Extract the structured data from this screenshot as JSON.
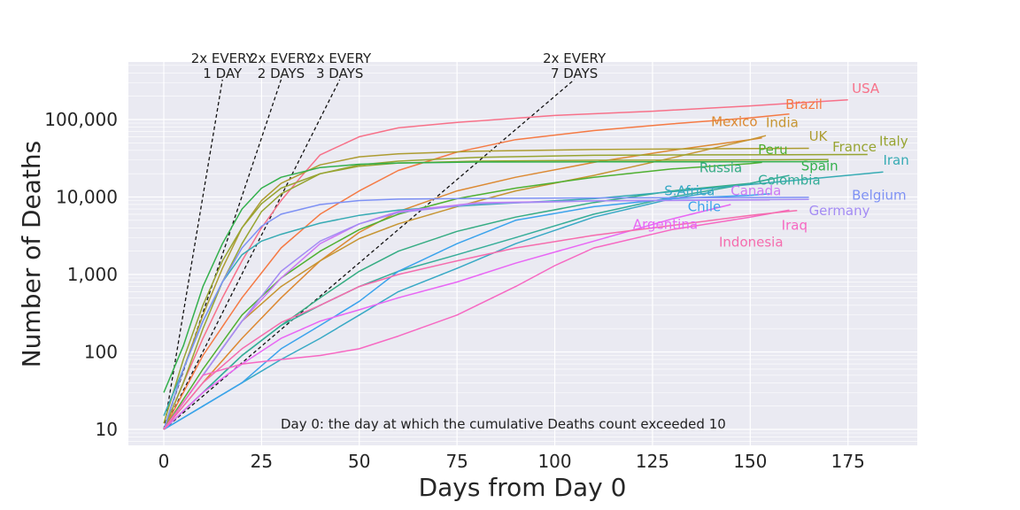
{
  "chart_data": {
    "type": "line",
    "xlabel": "Days from Day 0",
    "ylabel": "Number of Deaths",
    "xlim": [
      -8,
      193
    ],
    "ylim": [
      6.2,
      430000
    ],
    "yscale": "log",
    "grid": true,
    "x_ticks": [
      0,
      25,
      50,
      75,
      100,
      125,
      150,
      175
    ],
    "x_tick_labels": [
      "0",
      "25",
      "50",
      "75",
      "100",
      "125",
      "150",
      "175"
    ],
    "y_ticks": [
      10,
      100,
      1000,
      10000,
      100000
    ],
    "y_tick_labels": [
      "10",
      "100",
      "1,000",
      "10,000",
      "100,000"
    ],
    "annotation": "Day 0: the day at which the cumulative Deaths count exceeded 10",
    "doubling_guides": [
      {
        "label_line1": "2x EVERY",
        "label_line2": "1 DAY",
        "doubling_days": 1,
        "end_x": 15
      },
      {
        "label_line1": "2x EVERY",
        "label_line2": "2 DAYS",
        "doubling_days": 2,
        "end_x": 30
      },
      {
        "label_line1": "2x EVERY",
        "label_line2": "3 DAYS",
        "doubling_days": 3,
        "end_x": 45
      },
      {
        "label_line1": "2x EVERY",
        "label_line2": "7 DAYS",
        "doubling_days": 7,
        "end_x": 105
      }
    ],
    "series": [
      {
        "name": "USA",
        "color": "#f77189",
        "x": [
          0,
          5,
          10,
          15,
          20,
          25,
          30,
          35,
          40,
          50,
          60,
          75,
          100,
          125,
          150,
          175
        ],
        "y": [
          10,
          40,
          150,
          500,
          1500,
          4000,
          9000,
          18000,
          35000,
          60000,
          78000,
          92000,
          113000,
          128000,
          150000,
          180000
        ],
        "label_x": 176,
        "label_y": 220000
      },
      {
        "name": "Brazil",
        "color": "#f57a44",
        "x": [
          0,
          10,
          20,
          30,
          40,
          50,
          60,
          75,
          90,
          110,
          130,
          150,
          160
        ],
        "y": [
          10,
          90,
          500,
          2200,
          6000,
          12000,
          22000,
          38000,
          55000,
          72000,
          88000,
          105000,
          118000
        ],
        "label_x": 159,
        "label_y": 138000
      },
      {
        "name": "Mexico",
        "color": "#dc8932",
        "x": [
          0,
          10,
          20,
          30,
          40,
          50,
          60,
          75,
          90,
          110,
          130,
          150,
          153
        ],
        "y": [
          10,
          40,
          150,
          500,
          1500,
          3500,
          6500,
          12000,
          18000,
          28000,
          40000,
          55000,
          58000
        ],
        "label_x": 140,
        "label_y": 82000
      },
      {
        "name": "India",
        "color": "#c69532",
        "x": [
          0,
          10,
          20,
          30,
          40,
          50,
          60,
          75,
          90,
          110,
          130,
          150,
          154
        ],
        "y": [
          10,
          50,
          250,
          700,
          1500,
          2900,
          4500,
          7500,
          12000,
          19000,
          32000,
          55000,
          62000
        ],
        "label_x": 154,
        "label_y": 80000
      },
      {
        "name": "UK",
        "color": "#ad9c31",
        "x": [
          0,
          5,
          10,
          15,
          20,
          25,
          30,
          40,
          50,
          60,
          80,
          110,
          140,
          165
        ],
        "y": [
          10,
          60,
          300,
          1200,
          4000,
          9000,
          15000,
          26000,
          33000,
          36000,
          39000,
          41000,
          42000,
          42500
        ],
        "label_x": 165,
        "label_y": 53000
      },
      {
        "name": "France",
        "color": "#97a431",
        "x": [
          0,
          5,
          10,
          15,
          20,
          25,
          30,
          40,
          50,
          60,
          80,
          110,
          140,
          170
        ],
        "y": [
          10,
          40,
          200,
          800,
          2500,
          6500,
          11000,
          20000,
          25000,
          27500,
          29000,
          29800,
          30000,
          30500
        ],
        "label_x": 171,
        "label_y": 39000
      },
      {
        "name": "Italy",
        "color": "#97a431",
        "x": [
          0,
          5,
          10,
          15,
          20,
          25,
          30,
          40,
          50,
          60,
          80,
          110,
          140,
          180
        ],
        "y": [
          12,
          80,
          400,
          1500,
          4000,
          8200,
          13000,
          20000,
          26000,
          29000,
          32500,
          34500,
          35000,
          35400
        ],
        "label_x": 183,
        "label_y": 46000
      },
      {
        "name": "Peru",
        "color": "#4fb031",
        "x": [
          0,
          10,
          20,
          30,
          40,
          50,
          60,
          75,
          90,
          110,
          130,
          150,
          153
        ],
        "y": [
          10,
          60,
          300,
          900,
          2000,
          3800,
          6000,
          9500,
          13000,
          18000,
          23000,
          27000,
          28000
        ],
        "label_x": 152,
        "label_y": 36000
      },
      {
        "name": "Spain",
        "color": "#33b04c",
        "x": [
          0,
          5,
          10,
          15,
          20,
          25,
          30,
          40,
          50,
          60,
          80,
          110,
          140,
          170
        ],
        "y": [
          30,
          120,
          700,
          2500,
          7000,
          13000,
          18000,
          24000,
          26500,
          27500,
          28300,
          28400,
          28500,
          28600
        ],
        "label_x": 163,
        "label_y": 22000
      },
      {
        "name": "Russia",
        "color": "#35ac83",
        "x": [
          0,
          10,
          20,
          30,
          40,
          50,
          60,
          75,
          90,
          110,
          130,
          150,
          155
        ],
        "y": [
          10,
          30,
          90,
          220,
          500,
          1100,
          2000,
          3600,
          5500,
          8500,
          12000,
          15000,
          17000
        ],
        "label_x": 137,
        "label_y": 21000
      },
      {
        "name": "Colombia",
        "color": "#36ad99",
        "x": [
          0,
          10,
          20,
          30,
          40,
          50,
          60,
          75,
          90,
          110,
          130,
          150,
          160
        ],
        "y": [
          10,
          30,
          90,
          220,
          400,
          700,
          1100,
          1800,
          3000,
          6000,
          10000,
          15000,
          19000
        ],
        "label_x": 152,
        "label_y": 14500
      },
      {
        "name": "Iran",
        "color": "#37abb4",
        "x": [
          0,
          5,
          10,
          15,
          20,
          25,
          30,
          40,
          50,
          60,
          80,
          110,
          140,
          184
        ],
        "y": [
          15,
          60,
          250,
          800,
          1800,
          2700,
          3300,
          4600,
          5800,
          6800,
          7900,
          9500,
          13000,
          21000
        ],
        "label_x": 184,
        "label_y": 26000
      },
      {
        "name": "S.Africa",
        "color": "#38a9c5",
        "x": [
          0,
          10,
          20,
          30,
          40,
          50,
          60,
          75,
          90,
          110,
          130,
          140
        ],
        "y": [
          10,
          20,
          40,
          80,
          150,
          300,
          600,
          1200,
          2500,
          5500,
          9500,
          11500
        ],
        "label_x": 128,
        "label_y": 10500
      },
      {
        "name": "Chile",
        "color": "#3ba3ec",
        "x": [
          0,
          10,
          20,
          30,
          40,
          50,
          60,
          75,
          90,
          110,
          130,
          150,
          155
        ],
        "y": [
          10,
          20,
          40,
          110,
          220,
          450,
          1100,
          2500,
          5000,
          7500,
          9500,
          10500,
          11000
        ],
        "label_x": 134,
        "label_y": 6600
      },
      {
        "name": "Canada",
        "color": "#cc7af4",
        "x": [
          0,
          10,
          20,
          30,
          40,
          50,
          60,
          80,
          110,
          140,
          155
        ],
        "y": [
          10,
          50,
          250,
          900,
          2500,
          4500,
          6500,
          8400,
          8900,
          9100,
          9200
        ],
        "label_x": 145,
        "label_y": 10500
      },
      {
        "name": "Belgium",
        "color": "#7e91f4",
        "x": [
          0,
          5,
          10,
          15,
          20,
          25,
          30,
          40,
          50,
          60,
          80,
          110,
          140,
          165
        ],
        "y": [
          10,
          60,
          250,
          800,
          2200,
          4200,
          6000,
          8000,
          9000,
          9400,
          9600,
          9750,
          9850,
          9900
        ],
        "label_x": 176,
        "label_y": 9200
      },
      {
        "name": "Germany",
        "color": "#a48cf4",
        "x": [
          0,
          10,
          20,
          30,
          40,
          50,
          60,
          80,
          110,
          140,
          165
        ],
        "y": [
          10,
          50,
          250,
          1100,
          2700,
          4500,
          6300,
          8200,
          8900,
          9200,
          9300
        ],
        "label_x": 165,
        "label_y": 5800
      },
      {
        "name": "Argentina",
        "color": "#e866f4",
        "x": [
          0,
          10,
          20,
          30,
          40,
          50,
          60,
          75,
          90,
          110,
          130,
          145
        ],
        "y": [
          10,
          30,
          70,
          150,
          250,
          350,
          500,
          800,
          1400,
          2700,
          5200,
          8000
        ],
        "label_x": 120,
        "label_y": 3900
      },
      {
        "name": "Iraq",
        "color": "#f668c2",
        "x": [
          0,
          10,
          20,
          30,
          40,
          50,
          60,
          75,
          90,
          100,
          110,
          130,
          150,
          160
        ],
        "y": [
          10,
          50,
          70,
          80,
          90,
          110,
          160,
          300,
          700,
          1300,
          2200,
          3800,
          5500,
          6800
        ],
        "label_x": 158,
        "label_y": 3800
      },
      {
        "name": "Indonesia",
        "color": "#f56cad",
        "x": [
          0,
          10,
          20,
          30,
          40,
          50,
          60,
          75,
          90,
          110,
          130,
          150,
          162
        ],
        "y": [
          10,
          40,
          110,
          240,
          400,
          700,
          1000,
          1500,
          2200,
          3200,
          4300,
          5800,
          6700
        ],
        "label_x": 142,
        "label_y": 2300
      }
    ]
  }
}
